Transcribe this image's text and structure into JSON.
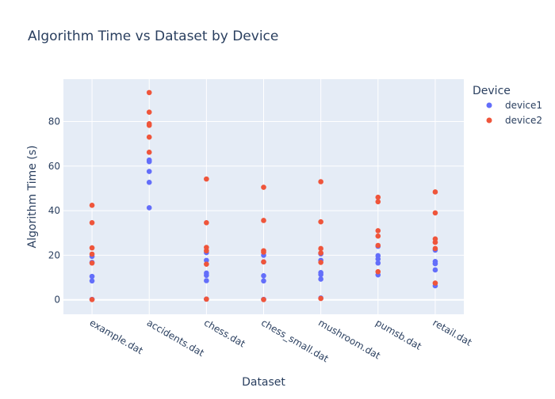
{
  "chart_data": {
    "type": "scatter",
    "title": "Algorithm Time vs Dataset by Device",
    "xlabel": "Dataset",
    "ylabel": "Algorithm Time (s)",
    "categories": [
      "example.dat",
      "accidents.dat",
      "chess.dat",
      "chess_small.dat",
      "mushroom.dat",
      "pumsb.dat",
      "retail.dat"
    ],
    "ylim": [
      -6.5,
      99
    ],
    "yticks": [
      0,
      20,
      40,
      60,
      80
    ],
    "grid": true,
    "legend": {
      "title": "Device",
      "placement": "top-right"
    },
    "series": [
      {
        "name": "device1",
        "color": "#636efa",
        "points": [
          {
            "cat": "example.dat",
            "y": 0.2
          },
          {
            "cat": "example.dat",
            "y": 8.5
          },
          {
            "cat": "example.dat",
            "y": 10.5
          },
          {
            "cat": "example.dat",
            "y": 16.8
          },
          {
            "cat": "example.dat",
            "y": 19.5
          },
          {
            "cat": "accidents.dat",
            "y": 41.3
          },
          {
            "cat": "accidents.dat",
            "y": 52.7
          },
          {
            "cat": "accidents.dat",
            "y": 57.6
          },
          {
            "cat": "accidents.dat",
            "y": 62.0
          },
          {
            "cat": "accidents.dat",
            "y": 62.7
          },
          {
            "cat": "chess.dat",
            "y": 0.3
          },
          {
            "cat": "chess.dat",
            "y": 8.6
          },
          {
            "cat": "chess.dat",
            "y": 11.0
          },
          {
            "cat": "chess.dat",
            "y": 12.0
          },
          {
            "cat": "chess.dat",
            "y": 17.7
          },
          {
            "cat": "chess.dat",
            "y": 21.2
          },
          {
            "cat": "chess_small.dat",
            "y": 0.2
          },
          {
            "cat": "chess_small.dat",
            "y": 8.5
          },
          {
            "cat": "chess_small.dat",
            "y": 10.8
          },
          {
            "cat": "chess_small.dat",
            "y": 17.0
          },
          {
            "cat": "chess_small.dat",
            "y": 20.0
          },
          {
            "cat": "mushroom.dat",
            "y": 0.8
          },
          {
            "cat": "mushroom.dat",
            "y": 9.3
          },
          {
            "cat": "mushroom.dat",
            "y": 11.3
          },
          {
            "cat": "mushroom.dat",
            "y": 12.2
          },
          {
            "cat": "mushroom.dat",
            "y": 17.7
          },
          {
            "cat": "mushroom.dat",
            "y": 20.6
          },
          {
            "cat": "pumsb.dat",
            "y": 11.2
          },
          {
            "cat": "pumsb.dat",
            "y": 16.5
          },
          {
            "cat": "pumsb.dat",
            "y": 18.3
          },
          {
            "cat": "pumsb.dat",
            "y": 19.8
          },
          {
            "cat": "pumsb.dat",
            "y": 24.0
          },
          {
            "cat": "retail.dat",
            "y": 6.3
          },
          {
            "cat": "retail.dat",
            "y": 13.4
          },
          {
            "cat": "retail.dat",
            "y": 16.2
          },
          {
            "cat": "retail.dat",
            "y": 17.2
          },
          {
            "cat": "retail.dat",
            "y": 22.3
          }
        ]
      },
      {
        "name": "device2",
        "color": "#ef553b",
        "points": [
          {
            "cat": "example.dat",
            "y": 0.1
          },
          {
            "cat": "example.dat",
            "y": 16.5
          },
          {
            "cat": "example.dat",
            "y": 20.5
          },
          {
            "cat": "example.dat",
            "y": 23.3
          },
          {
            "cat": "example.dat",
            "y": 34.6
          },
          {
            "cat": "example.dat",
            "y": 42.4
          },
          {
            "cat": "accidents.dat",
            "y": 66.2
          },
          {
            "cat": "accidents.dat",
            "y": 73.0
          },
          {
            "cat": "accidents.dat",
            "y": 78.3
          },
          {
            "cat": "accidents.dat",
            "y": 79.0
          },
          {
            "cat": "accidents.dat",
            "y": 84.2
          },
          {
            "cat": "accidents.dat",
            "y": 93.0
          },
          {
            "cat": "chess.dat",
            "y": 0.3
          },
          {
            "cat": "chess.dat",
            "y": 16.0
          },
          {
            "cat": "chess.dat",
            "y": 22.0
          },
          {
            "cat": "chess.dat",
            "y": 23.5
          },
          {
            "cat": "chess.dat",
            "y": 34.6
          },
          {
            "cat": "chess.dat",
            "y": 54.2
          },
          {
            "cat": "chess_small.dat",
            "y": 0.1
          },
          {
            "cat": "chess_small.dat",
            "y": 17.0
          },
          {
            "cat": "chess_small.dat",
            "y": 21.4
          },
          {
            "cat": "chess_small.dat",
            "y": 22.0
          },
          {
            "cat": "chess_small.dat",
            "y": 35.6
          },
          {
            "cat": "chess_small.dat",
            "y": 50.5
          },
          {
            "cat": "mushroom.dat",
            "y": 0.6
          },
          {
            "cat": "mushroom.dat",
            "y": 16.8
          },
          {
            "cat": "mushroom.dat",
            "y": 21.0
          },
          {
            "cat": "mushroom.dat",
            "y": 23.0
          },
          {
            "cat": "mushroom.dat",
            "y": 35.0
          },
          {
            "cat": "mushroom.dat",
            "y": 53.0
          },
          {
            "cat": "pumsb.dat",
            "y": 12.6
          },
          {
            "cat": "pumsb.dat",
            "y": 24.4
          },
          {
            "cat": "pumsb.dat",
            "y": 28.6
          },
          {
            "cat": "pumsb.dat",
            "y": 31.0
          },
          {
            "cat": "pumsb.dat",
            "y": 44.0
          },
          {
            "cat": "pumsb.dat",
            "y": 46.0
          },
          {
            "cat": "retail.dat",
            "y": 7.5
          },
          {
            "cat": "retail.dat",
            "y": 23.0
          },
          {
            "cat": "retail.dat",
            "y": 25.8
          },
          {
            "cat": "retail.dat",
            "y": 27.3
          },
          {
            "cat": "retail.dat",
            "y": 39.0
          },
          {
            "cat": "retail.dat",
            "y": 48.4
          }
        ]
      }
    ]
  }
}
